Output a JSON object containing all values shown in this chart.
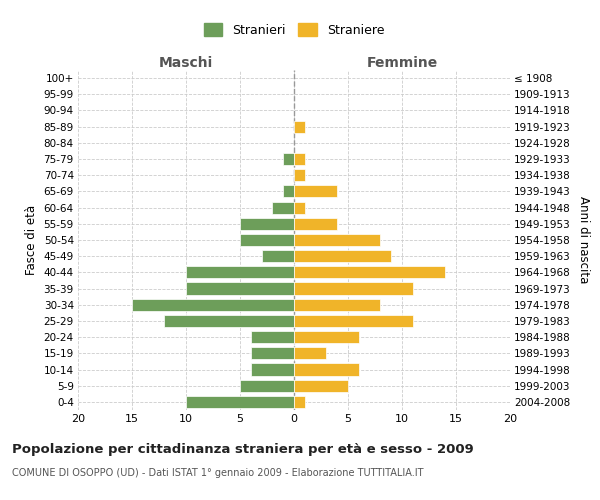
{
  "age_groups": [
    "100+",
    "95-99",
    "90-94",
    "85-89",
    "80-84",
    "75-79",
    "70-74",
    "65-69",
    "60-64",
    "55-59",
    "50-54",
    "45-49",
    "40-44",
    "35-39",
    "30-34",
    "25-29",
    "20-24",
    "15-19",
    "10-14",
    "5-9",
    "0-4"
  ],
  "birth_years": [
    "≤ 1908",
    "1909-1913",
    "1914-1918",
    "1919-1923",
    "1924-1928",
    "1929-1933",
    "1934-1938",
    "1939-1943",
    "1944-1948",
    "1949-1953",
    "1954-1958",
    "1959-1963",
    "1964-1968",
    "1969-1973",
    "1974-1978",
    "1979-1983",
    "1984-1988",
    "1989-1993",
    "1994-1998",
    "1999-2003",
    "2004-2008"
  ],
  "males": [
    0,
    0,
    0,
    0,
    0,
    1,
    0,
    1,
    2,
    5,
    5,
    3,
    10,
    10,
    15,
    12,
    4,
    4,
    4,
    5,
    10
  ],
  "females": [
    0,
    0,
    0,
    1,
    0,
    1,
    1,
    4,
    1,
    4,
    8,
    9,
    14,
    11,
    8,
    11,
    6,
    3,
    6,
    5,
    1
  ],
  "male_color": "#6d9e5a",
  "female_color": "#f0b429",
  "title": "Popolazione per cittadinanza straniera per età e sesso - 2009",
  "subtitle": "COMUNE DI OSOPPO (UD) - Dati ISTAT 1° gennaio 2009 - Elaborazione TUTTITALIA.IT",
  "xlabel_left": "Maschi",
  "xlabel_right": "Femmine",
  "ylabel_left": "Fasce di età",
  "ylabel_right": "Anni di nascita",
  "legend_male": "Stranieri",
  "legend_female": "Straniere",
  "xlim": 20,
  "background_color": "#ffffff",
  "grid_color": "#cccccc"
}
